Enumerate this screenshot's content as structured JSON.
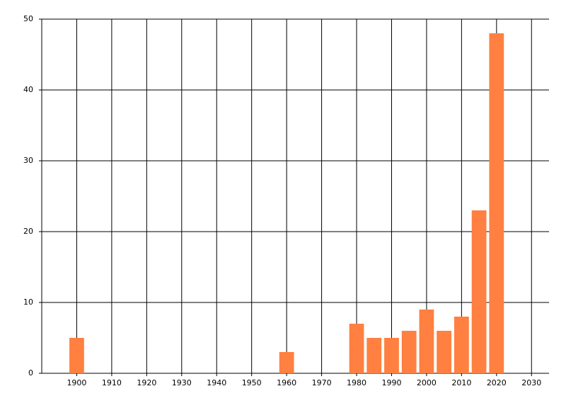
{
  "chart_data": {
    "type": "bar",
    "x": [
      1900,
      1960,
      1980,
      1985,
      1990,
      1995,
      2000,
      2005,
      2010,
      2015,
      2020
    ],
    "values": [
      5,
      3,
      7,
      5,
      5,
      6,
      9,
      6,
      8,
      23,
      48
    ],
    "color": "#ff8040",
    "xlim": [
      1890,
      2035
    ],
    "xticks": [
      1900,
      1910,
      1920,
      1930,
      1940,
      1950,
      1960,
      1970,
      1980,
      1990,
      2000,
      2010,
      2020,
      2030
    ],
    "ylim": [
      0,
      50
    ],
    "yticks": [
      0,
      10,
      20,
      30,
      40,
      50
    ],
    "grid": true
  }
}
